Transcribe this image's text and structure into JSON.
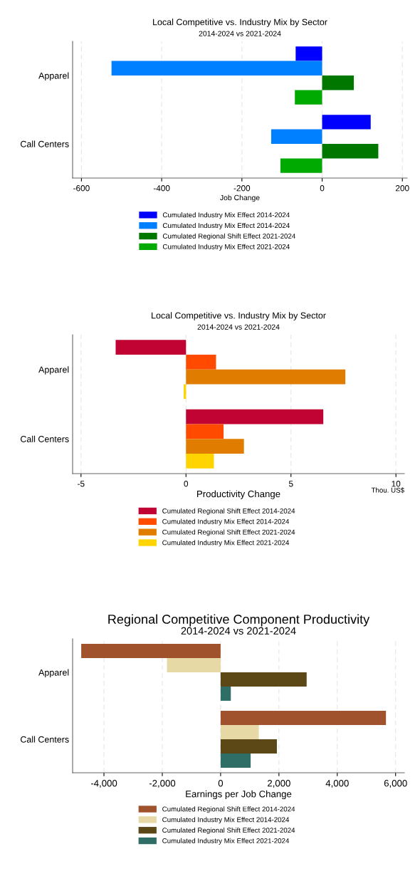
{
  "chart_data": [
    {
      "type": "bar",
      "orientation": "horizontal",
      "title": "Local Competitive vs. Industry Mix by Sector",
      "subtitle": "2014-2024 vs 2021-2024",
      "xlabel": "Job Change",
      "categories": [
        "Apparel",
        "Call Centers"
      ],
      "xlim": [
        -622,
        212
      ],
      "xticks": [
        -600,
        -400,
        -200,
        0,
        200
      ],
      "grid": "x",
      "legend": "bottom",
      "series": [
        {
          "name": "Cumulated Industry Mix Effect 2014-2024",
          "color": "#0000ff",
          "values": [
            -66,
            121
          ]
        },
        {
          "name": "Cumulated Industry Mix Effect 2014-2024",
          "color": "#0080ff",
          "values": [
            -525,
            -127
          ]
        },
        {
          "name": "Cumulated Regional Shift Effect 2021-2024",
          "color": "#007800",
          "values": [
            79,
            140
          ]
        },
        {
          "name": "Cumulated Industry Mix Effect 2021-2024",
          "color": "#00aa00",
          "values": [
            -68,
            -104
          ]
        }
      ]
    },
    {
      "type": "bar",
      "orientation": "horizontal",
      "title": "Local Competitive vs. Industry Mix by Sector",
      "subtitle": "2014-2024 vs 2021-2024",
      "xlabel": "Productivity Change",
      "annotations": [
        "Thou. US$"
      ],
      "categories": [
        "Apparel",
        "Call Centers"
      ],
      "xlim": [
        -5.4,
        10.4
      ],
      "xticks": [
        -5,
        0,
        5,
        10
      ],
      "grid": "x",
      "legend": "bottom",
      "series": [
        {
          "name": "Cumulated Regional Shift Effect 2014-2024",
          "color": "#c00333",
          "values": [
            -3.35,
            6.54
          ]
        },
        {
          "name": "Cumulated Industry Mix Effect 2014-2024",
          "color": "#ff4a00",
          "values": [
            1.43,
            1.79
          ]
        },
        {
          "name": "Cumulated Regional Shift Effect 2021-2024",
          "color": "#e07c00",
          "values": [
            7.59,
            2.76
          ]
        },
        {
          "name": "Cumulated Industry Mix Effect 2021-2024",
          "color": "#ffd400",
          "values": [
            -0.11,
            1.33
          ]
        }
      ]
    },
    {
      "type": "bar",
      "orientation": "horizontal",
      "title": "Regional Competitive Component Productivity",
      "subtitle": "2014-2024 vs 2021-2024",
      "xlabel": "Earnings per Job Change",
      "categories": [
        "Apparel",
        "Call Centers"
      ],
      "xlim": [
        -5075,
        6300
      ],
      "xticks": [
        {
          "value": -4000,
          "label": "-4,000"
        },
        {
          "value": -2000,
          "label": "-2,000"
        },
        0,
        {
          "value": 2000,
          "label": "2,000"
        },
        {
          "value": 4000,
          "label": "4,000"
        },
        {
          "value": 6000,
          "label": "6,000"
        }
      ],
      "grid": "x",
      "legend": "bottom",
      "series": [
        {
          "name": "Cumulated Regional Shift Effect 2014-2024",
          "color": "#a0522d",
          "values": [
            -4780,
            5670
          ]
        },
        {
          "name": "Cumulated Industry Mix Effect 2014-2024",
          "color": "#e6d9a5",
          "values": [
            -1840,
            1310
          ]
        },
        {
          "name": "Cumulated Regional Shift Effect 2021-2024",
          "color": "#5c4716",
          "values": [
            2950,
            1930
          ]
        },
        {
          "name": "Cumulated Industry Mix Effect 2021-2024",
          "color": "#2e6e66",
          "values": [
            350,
            1030
          ]
        }
      ]
    }
  ]
}
